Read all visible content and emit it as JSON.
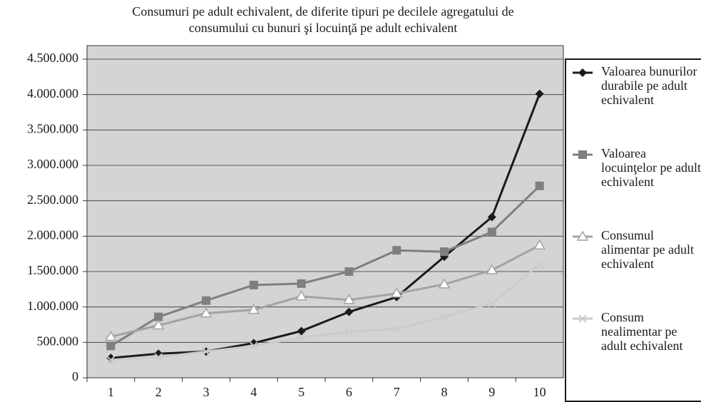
{
  "chart_data": {
    "type": "line",
    "title": [
      "Consumuri pe adult echivalent, de diferite tipuri pe decilele agregatului de",
      "consumului cu bunuri şi locuinţă pe adult echivalent"
    ],
    "categories": [
      "1",
      "2",
      "3",
      "4",
      "5",
      "6",
      "7",
      "8",
      "9",
      "10"
    ],
    "series": [
      {
        "name": "Valoarea bunurilor durabile pe adult echivalent",
        "color": "#1a1a1a",
        "marker": "diamond",
        "values": [
          280000,
          340000,
          370000,
          490000,
          660000,
          930000,
          1140000,
          1710000,
          2270000,
          4010000
        ]
      },
      {
        "name": "Valoarea locuinţelor pe adult echivalent",
        "color": "#7f7f7f",
        "marker": "square",
        "values": [
          450000,
          860000,
          1090000,
          1310000,
          1330000,
          1500000,
          1800000,
          1780000,
          2060000,
          2710000
        ]
      },
      {
        "name": "Consumul alimentar pe adult echivalent",
        "color": "#a3a3a3",
        "marker": "triangle",
        "values": [
          580000,
          740000,
          910000,
          960000,
          1150000,
          1100000,
          1190000,
          1320000,
          1520000,
          1870000
        ]
      },
      {
        "name": "Consum nealimentar pe adult echivalent",
        "color": "#cbcbcb",
        "marker": "x",
        "values": [
          250000,
          290000,
          370000,
          450000,
          570000,
          650000,
          690000,
          860000,
          1050000,
          1600000
        ]
      }
    ],
    "ylim": [
      0,
      4500000
    ],
    "yticks": [
      0,
      {
        "value": 500000,
        "label": "500.000"
      },
      {
        "value": 1000000,
        "label": "1.000.000"
      },
      {
        "value": 1500000,
        "label": "1.500.000"
      },
      {
        "value": 2000000,
        "label": "2.000.000"
      },
      {
        "value": 2500000,
        "label": "2.500.000"
      },
      {
        "value": 3000000,
        "label": "3.000.000"
      },
      {
        "value": 3500000,
        "label": "3.500.000"
      },
      {
        "value": 4000000,
        "label": "4.000.000"
      },
      {
        "value": 4500000,
        "label": "4.500.000"
      }
    ],
    "grid": true,
    "legend": "right"
  }
}
